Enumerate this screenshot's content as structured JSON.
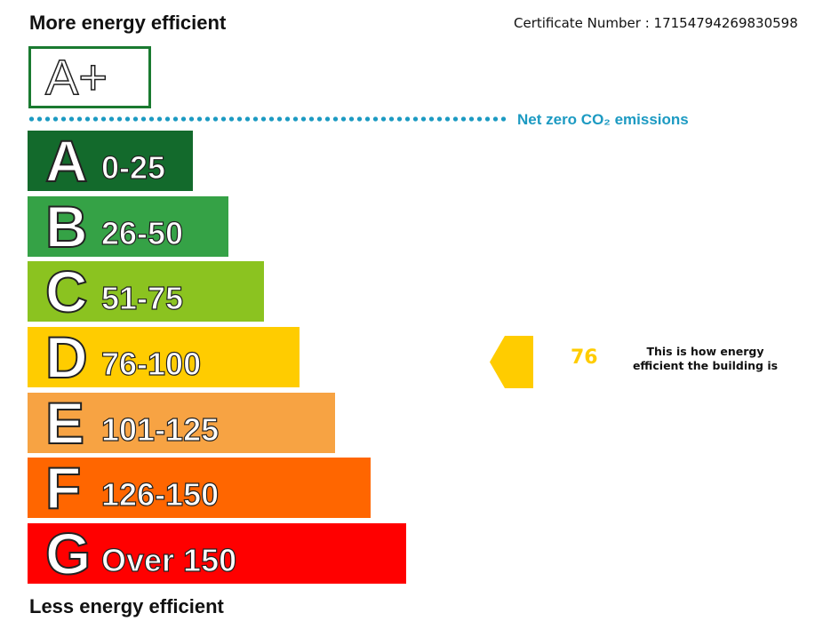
{
  "header": {
    "title": "More energy efficient",
    "certificate": "Certificate Number : 17154794269830598"
  },
  "top_rating": {
    "label": "A+"
  },
  "net_zero": {
    "label": "Net zero CO₂ emissions"
  },
  "bands": [
    {
      "letter": "A",
      "range": "0-25",
      "color": "#136a2c"
    },
    {
      "letter": "B",
      "range": "26-50",
      "color": "#35a246"
    },
    {
      "letter": "C",
      "range": "51-75",
      "color": "#8bc320"
    },
    {
      "letter": "D",
      "range": "76-100",
      "color": "#ffcc00"
    },
    {
      "letter": "E",
      "range": "101-125",
      "color": "#f7a343"
    },
    {
      "letter": "F",
      "range": "126-150",
      "color": "#ff6600"
    },
    {
      "letter": "G",
      "range": "Over 150",
      "color": "#ff0000"
    }
  ],
  "rating": {
    "value": "76",
    "caption": "This is how energy efficient the building is"
  },
  "footer": {
    "title": "Less energy efficient"
  }
}
